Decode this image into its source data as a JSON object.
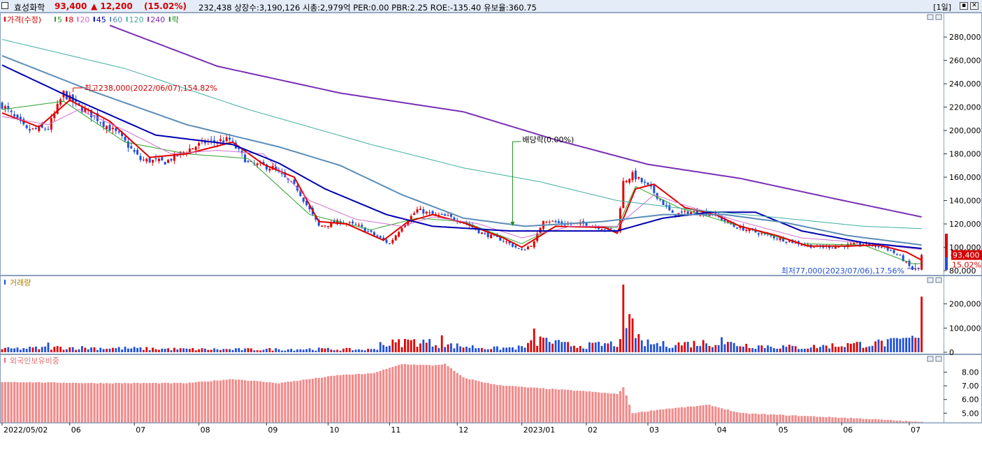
{
  "header": {
    "stock_name": "효성화학",
    "price": "93,400",
    "change": "▲ 12,200",
    "change_rate": "(15.02%)",
    "stats": "232,438  상장수:3,190,126 시총:2,979억 PER:0.00 PBR:2.25 ROE:-135.40 유보율:360.75",
    "period": "[1일]"
  },
  "price_panel": {
    "legend": [
      {
        "text": "가격(수정)",
        "color": "#d40000"
      },
      {
        "text": "5",
        "color": "#2ca02c"
      },
      {
        "text": "8",
        "color": "#d40000"
      },
      {
        "text": "20",
        "color": "#d070d0"
      },
      {
        "text": "45",
        "color": "#0000b0"
      },
      {
        "text": "60",
        "color": "#5b8db8"
      },
      {
        "text": "120",
        "color": "#3fae9f"
      },
      {
        "text": "240",
        "color": "#7a2fb5"
      },
      {
        "text": "락",
        "color": "#1a8a1a"
      }
    ],
    "ylim": [
      80000,
      295000
    ],
    "y_ticks": [
      {
        "v": 280000,
        "t": "280,000"
      },
      {
        "v": 260000,
        "t": "260,000"
      },
      {
        "v": 240000,
        "t": "240,000"
      },
      {
        "v": 220000,
        "t": "220,000"
      },
      {
        "v": 200000,
        "t": "200,000"
      },
      {
        "v": 180000,
        "t": "180,000"
      },
      {
        "v": 160000,
        "t": "160,000"
      },
      {
        "v": 140000,
        "t": "140,000"
      },
      {
        "v": 120000,
        "t": "120,000"
      },
      {
        "v": 100000,
        "t": "100,000"
      },
      {
        "v": 80000,
        "t": "80,000"
      }
    ],
    "high_note": "최고238,000(2022/06/07),154.82%",
    "low_note": "최저77,000(2023/07/06),17.56%",
    "dividend_note": "배당락(0.00%)",
    "current_price": "93,400",
    "current_rate": "15.02%"
  },
  "volume_panel": {
    "title": "거래량",
    "ylim": [
      0,
      300000
    ],
    "y_ticks": [
      {
        "v": 200000,
        "t": "200,000"
      },
      {
        "v": 100000,
        "t": "100,000"
      },
      {
        "v": 0,
        "t": "0"
      }
    ]
  },
  "foreign_panel": {
    "title": "외국인보유비중",
    "ylim": [
      4.3,
      8.9
    ],
    "y_ticks": [
      {
        "v": 8,
        "t": "8.00"
      },
      {
        "v": 7,
        "t": "7.00"
      },
      {
        "v": 6,
        "t": "6.00"
      },
      {
        "v": 5,
        "t": "5.00"
      }
    ]
  },
  "x_axis": [
    {
      "i": 0,
      "t": "2022/05/02"
    },
    {
      "i": 22,
      "t": "06"
    },
    {
      "i": 43,
      "t": "07"
    },
    {
      "i": 64,
      "t": "08"
    },
    {
      "i": 86,
      "t": "09"
    },
    {
      "i": 106,
      "t": "10"
    },
    {
      "i": 126,
      "t": "11"
    },
    {
      "i": 148,
      "t": "12"
    },
    {
      "i": 169,
      "t": "2023/01"
    },
    {
      "i": 190,
      "t": "02"
    },
    {
      "i": 210,
      "t": "03"
    },
    {
      "i": 232,
      "t": "04"
    },
    {
      "i": 252,
      "t": "05"
    },
    {
      "i": 273,
      "t": "06"
    },
    {
      "i": 295,
      "t": "07"
    }
  ],
  "chart_data": {
    "type": "candlestick",
    "bars": 300,
    "close_anchors": [
      [
        0,
        222000
      ],
      [
        8,
        200000
      ],
      [
        15,
        202000
      ],
      [
        20,
        232000
      ],
      [
        24,
        222000
      ],
      [
        30,
        212000
      ],
      [
        38,
        196000
      ],
      [
        45,
        175000
      ],
      [
        53,
        173000
      ],
      [
        60,
        183000
      ],
      [
        66,
        190000
      ],
      [
        74,
        192000
      ],
      [
        80,
        172000
      ],
      [
        88,
        168000
      ],
      [
        96,
        150000
      ],
      [
        103,
        118000
      ],
      [
        110,
        122000
      ],
      [
        116,
        118000
      ],
      [
        120,
        112000
      ],
      [
        126,
        103000
      ],
      [
        130,
        118000
      ],
      [
        135,
        132000
      ],
      [
        140,
        128000
      ],
      [
        145,
        126000
      ],
      [
        150,
        122000
      ],
      [
        156,
        112000
      ],
      [
        163,
        106000
      ],
      [
        169,
        97000
      ],
      [
        173,
        104000
      ],
      [
        176,
        124000
      ],
      [
        182,
        120000
      ],
      [
        190,
        120000
      ],
      [
        196,
        116000
      ],
      [
        200,
        114000
      ],
      [
        202,
        156000
      ],
      [
        205,
        162000
      ],
      [
        211,
        150000
      ],
      [
        218,
        128000
      ],
      [
        224,
        130000
      ],
      [
        231,
        129000
      ],
      [
        238,
        118000
      ],
      [
        245,
        113000
      ],
      [
        252,
        108000
      ],
      [
        258,
        104000
      ],
      [
        265,
        100000
      ],
      [
        272,
        101000
      ],
      [
        280,
        103000
      ],
      [
        287,
        100000
      ],
      [
        292,
        92000
      ],
      [
        296,
        81000
      ],
      [
        298,
        81200
      ],
      [
        299,
        93400
      ]
    ],
    "ma_lines": [
      {
        "name": "5",
        "color": "#2ca02c",
        "width": 1,
        "anchors": [
          [
            0,
            218000
          ],
          [
            20,
            225000
          ],
          [
            40,
            190000
          ],
          [
            60,
            180000
          ],
          [
            80,
            176000
          ],
          [
            100,
            128000
          ],
          [
            120,
            115000
          ],
          [
            135,
            125000
          ],
          [
            150,
            122000
          ],
          [
            169,
            103000
          ],
          [
            180,
            118000
          ],
          [
            200,
            117000
          ],
          [
            206,
            152000
          ],
          [
            220,
            134000
          ],
          [
            240,
            118000
          ],
          [
            260,
            103000
          ],
          [
            280,
            102000
          ],
          [
            296,
            86000
          ],
          [
            299,
            86000
          ]
        ]
      },
      {
        "name": "8",
        "color": "#e00000",
        "width": 2,
        "anchors": [
          [
            0,
            215000
          ],
          [
            12,
            203000
          ],
          [
            22,
            226000
          ],
          [
            35,
            208000
          ],
          [
            48,
            177000
          ],
          [
            60,
            180000
          ],
          [
            75,
            190000
          ],
          [
            85,
            171000
          ],
          [
            95,
            160000
          ],
          [
            103,
            122000
          ],
          [
            112,
            120000
          ],
          [
            124,
            106000
          ],
          [
            132,
            122000
          ],
          [
            140,
            128000
          ],
          [
            150,
            121000
          ],
          [
            163,
            108000
          ],
          [
            169,
            100000
          ],
          [
            180,
            118000
          ],
          [
            196,
            117000
          ],
          [
            200,
            112000
          ],
          [
            206,
            150000
          ],
          [
            212,
            154000
          ],
          [
            222,
            134000
          ],
          [
            232,
            128000
          ],
          [
            240,
            118000
          ],
          [
            252,
            110000
          ],
          [
            262,
            101000
          ],
          [
            275,
            101000
          ],
          [
            285,
            102000
          ],
          [
            294,
            96000
          ],
          [
            299,
            89000
          ]
        ]
      },
      {
        "name": "20",
        "color": "#d070d0",
        "width": 1,
        "anchors": [
          [
            0,
            212000
          ],
          [
            15,
            205000
          ],
          [
            25,
            218000
          ],
          [
            40,
            200000
          ],
          [
            55,
            180000
          ],
          [
            70,
            183000
          ],
          [
            85,
            180000
          ],
          [
            100,
            140000
          ],
          [
            115,
            124000
          ],
          [
            130,
            118000
          ],
          [
            140,
            126000
          ],
          [
            155,
            120000
          ],
          [
            169,
            108000
          ],
          [
            185,
            118000
          ],
          [
            200,
            118000
          ],
          [
            212,
            145000
          ],
          [
            222,
            136000
          ],
          [
            240,
            122000
          ],
          [
            260,
            108000
          ],
          [
            280,
            104000
          ],
          [
            299,
            98000
          ]
        ]
      },
      {
        "name": "45",
        "color": "#0000b0",
        "width": 2,
        "anchors": [
          [
            0,
            256000
          ],
          [
            25,
            225000
          ],
          [
            50,
            196000
          ],
          [
            75,
            188000
          ],
          [
            90,
            172000
          ],
          [
            105,
            150000
          ],
          [
            125,
            128000
          ],
          [
            140,
            118000
          ],
          [
            165,
            114000
          ],
          [
            190,
            114000
          ],
          [
            200,
            114000
          ],
          [
            215,
            125000
          ],
          [
            230,
            130000
          ],
          [
            245,
            130000
          ],
          [
            260,
            114000
          ],
          [
            280,
            104000
          ],
          [
            299,
            99000
          ]
        ]
      },
      {
        "name": "60",
        "color": "#5b8db8",
        "width": 2,
        "anchors": [
          [
            0,
            264000
          ],
          [
            30,
            233000
          ],
          [
            60,
            205000
          ],
          [
            90,
            186000
          ],
          [
            110,
            170000
          ],
          [
            130,
            145000
          ],
          [
            150,
            125000
          ],
          [
            170,
            118000
          ],
          [
            195,
            122000
          ],
          [
            215,
            128000
          ],
          [
            235,
            128000
          ],
          [
            255,
            121000
          ],
          [
            275,
            110000
          ],
          [
            299,
            102000
          ]
        ]
      },
      {
        "name": "120",
        "color": "#3fae9f",
        "width": 1,
        "anchors": [
          [
            0,
            278000
          ],
          [
            40,
            253000
          ],
          [
            80,
            218000
          ],
          [
            120,
            188000
          ],
          [
            150,
            168000
          ],
          [
            175,
            156000
          ],
          [
            200,
            140000
          ],
          [
            225,
            132000
          ],
          [
            250,
            126000
          ],
          [
            280,
            118000
          ],
          [
            299,
            116000
          ]
        ]
      },
      {
        "name": "240",
        "color": "#7a2fb5",
        "width": 2,
        "anchors": [
          [
            35,
            290000
          ],
          [
            70,
            255000
          ],
          [
            110,
            232000
          ],
          [
            150,
            216000
          ],
          [
            180,
            192000
          ],
          [
            210,
            171000
          ],
          [
            240,
            159000
          ],
          [
            270,
            142000
          ],
          [
            299,
            126000
          ]
        ]
      }
    ],
    "volume_anchors": [
      [
        0,
        15000
      ],
      [
        20,
        22000
      ],
      [
        40,
        18000
      ],
      [
        60,
        14000
      ],
      [
        80,
        13000
      ],
      [
        100,
        15000
      ],
      [
        120,
        12000
      ],
      [
        126,
        40000
      ],
      [
        135,
        50000
      ],
      [
        145,
        32000
      ],
      [
        160,
        18000
      ],
      [
        169,
        22000
      ],
      [
        176,
        60000
      ],
      [
        182,
        35000
      ],
      [
        190,
        30000
      ],
      [
        200,
        40000
      ],
      [
        205,
        45000
      ],
      [
        215,
        35000
      ],
      [
        232,
        45000
      ],
      [
        245,
        30000
      ],
      [
        260,
        22000
      ],
      [
        275,
        35000
      ],
      [
        290,
        45000
      ],
      [
        297,
        70000
      ],
      [
        299,
        230000
      ]
    ],
    "volume_spikes": [
      [
        15,
        40000
      ],
      [
        123,
        42000
      ],
      [
        131,
        55000
      ],
      [
        143,
        70000
      ],
      [
        173,
        98000
      ],
      [
        175,
        65000
      ],
      [
        202,
        280000
      ],
      [
        203,
        100000
      ],
      [
        204,
        158000
      ],
      [
        205,
        140000
      ],
      [
        207,
        75000
      ],
      [
        234,
        62000
      ],
      [
        275,
        38000
      ],
      [
        284,
        45000
      ],
      [
        296,
        68000
      ],
      [
        299,
        230000
      ]
    ],
    "foreign_anchors": [
      [
        0,
        7.3
      ],
      [
        30,
        7.2
      ],
      [
        60,
        7.2
      ],
      [
        75,
        7.5
      ],
      [
        90,
        7.2
      ],
      [
        100,
        7.5
      ],
      [
        110,
        7.8
      ],
      [
        120,
        7.9
      ],
      [
        126,
        8.3
      ],
      [
        130,
        8.6
      ],
      [
        140,
        8.5
      ],
      [
        144,
        8.6
      ],
      [
        150,
        7.6
      ],
      [
        160,
        7.1
      ],
      [
        170,
        6.9
      ],
      [
        190,
        6.6
      ],
      [
        200,
        6.4
      ],
      [
        202,
        6.9
      ],
      [
        205,
        5.0
      ],
      [
        215,
        5.3
      ],
      [
        230,
        5.6
      ],
      [
        240,
        5.0
      ],
      [
        260,
        4.8
      ],
      [
        280,
        4.6
      ],
      [
        299,
        4.35
      ]
    ]
  }
}
